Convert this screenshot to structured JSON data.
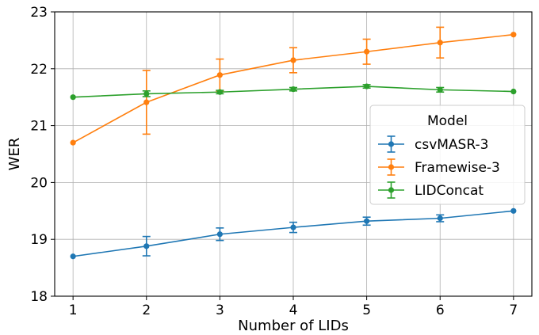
{
  "chart_data": {
    "type": "line",
    "title": "",
    "xlabel": "Number of LIDs",
    "ylabel": "WER",
    "x": [
      1,
      2,
      3,
      4,
      5,
      6,
      7
    ],
    "xlim": [
      0.75,
      7.25
    ],
    "ylim": [
      18,
      23
    ],
    "xticks": [
      "1",
      "2",
      "3",
      "4",
      "5",
      "6",
      "7"
    ],
    "yticks": [
      "18",
      "19",
      "20",
      "21",
      "22",
      "23"
    ],
    "grid": true,
    "legend": {
      "title": "Model",
      "placement": "center-right"
    },
    "series": [
      {
        "name": "csvMASR-3",
        "color": "#1f77b4",
        "values": [
          18.7,
          18.88,
          19.09,
          19.21,
          19.32,
          19.37,
          19.5
        ],
        "errors": [
          0.0,
          0.17,
          0.11,
          0.09,
          0.07,
          0.06,
          0.0
        ]
      },
      {
        "name": "Framewise-3",
        "color": "#ff7f0e",
        "values": [
          20.7,
          21.41,
          21.89,
          22.15,
          22.3,
          22.46,
          22.6
        ],
        "errors": [
          0.0,
          0.56,
          0.28,
          0.22,
          0.22,
          0.27,
          0.0
        ]
      },
      {
        "name": "LIDConcat",
        "color": "#2ca02c",
        "values": [
          21.5,
          21.56,
          21.59,
          21.64,
          21.69,
          21.63,
          21.6
        ],
        "errors": [
          0.0,
          0.05,
          0.03,
          0.03,
          0.03,
          0.04,
          0.0
        ]
      }
    ]
  }
}
